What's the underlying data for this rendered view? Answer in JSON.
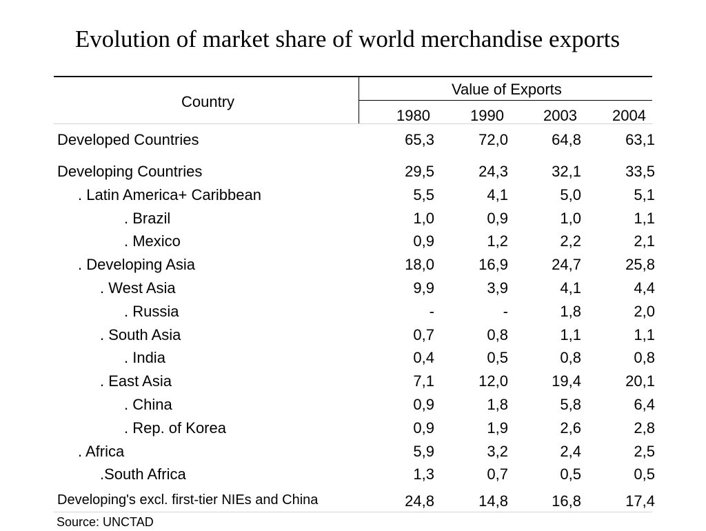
{
  "title": "Evolution of market share of world merchandise exports",
  "table": {
    "country_header": "Country",
    "value_header": "Value of Exports",
    "years": [
      "1980",
      "1990",
      "2003",
      "2004"
    ],
    "rows": [
      {
        "label": "Developed Countries",
        "values": [
          "65,3",
          "72,0",
          "64,8",
          "63,1"
        ]
      },
      {
        "label": "Developing Countries",
        "values": [
          "29,5",
          "24,3",
          "32,1",
          "33,5"
        ]
      },
      {
        "label": ". Latin America+ Caribbean",
        "values": [
          "5,5",
          "4,1",
          "5,0",
          "5,1"
        ]
      },
      {
        "label": ". Brazil",
        "values": [
          "1,0",
          "0,9",
          "1,0",
          "1,1"
        ]
      },
      {
        "label": ". Mexico",
        "values": [
          "0,9",
          "1,2",
          "2,2",
          "2,1"
        ]
      },
      {
        "label": ". Developing Asia",
        "values": [
          "18,0",
          "16,9",
          "24,7",
          "25,8"
        ]
      },
      {
        "label": ". West Asia",
        "values": [
          "9,9",
          "3,9",
          "4,1",
          "4,4"
        ]
      },
      {
        "label": ". Russia",
        "values": [
          "-",
          "-",
          "1,8",
          "2,0"
        ]
      },
      {
        "label": ". South Asia",
        "values": [
          "0,7",
          "0,8",
          "1,1",
          "1,1"
        ]
      },
      {
        "label": ". India",
        "values": [
          "0,4",
          "0,5",
          "0,8",
          "0,8"
        ]
      },
      {
        "label": ". East Asia",
        "values": [
          "7,1",
          "12,0",
          "19,4",
          "20,1"
        ]
      },
      {
        "label": ". China",
        "values": [
          "0,9",
          "1,8",
          "5,8",
          "6,4"
        ]
      },
      {
        "label": ". Rep. of Korea",
        "values": [
          "0,9",
          "1,9",
          "2,6",
          "2,8"
        ]
      },
      {
        "label": ". Africa",
        "values": [
          "5,9",
          "3,2",
          "2,4",
          "2,5"
        ]
      },
      {
        "label": ".South Africa",
        "values": [
          "1,3",
          "0,7",
          "0,5",
          "0,5"
        ]
      },
      {
        "label": "Developing's excl. first-tier NIEs and China",
        "values": [
          "24,8",
          "14,8",
          "16,8",
          "17,4"
        ]
      }
    ]
  },
  "source": "Source: UNCTAD"
}
